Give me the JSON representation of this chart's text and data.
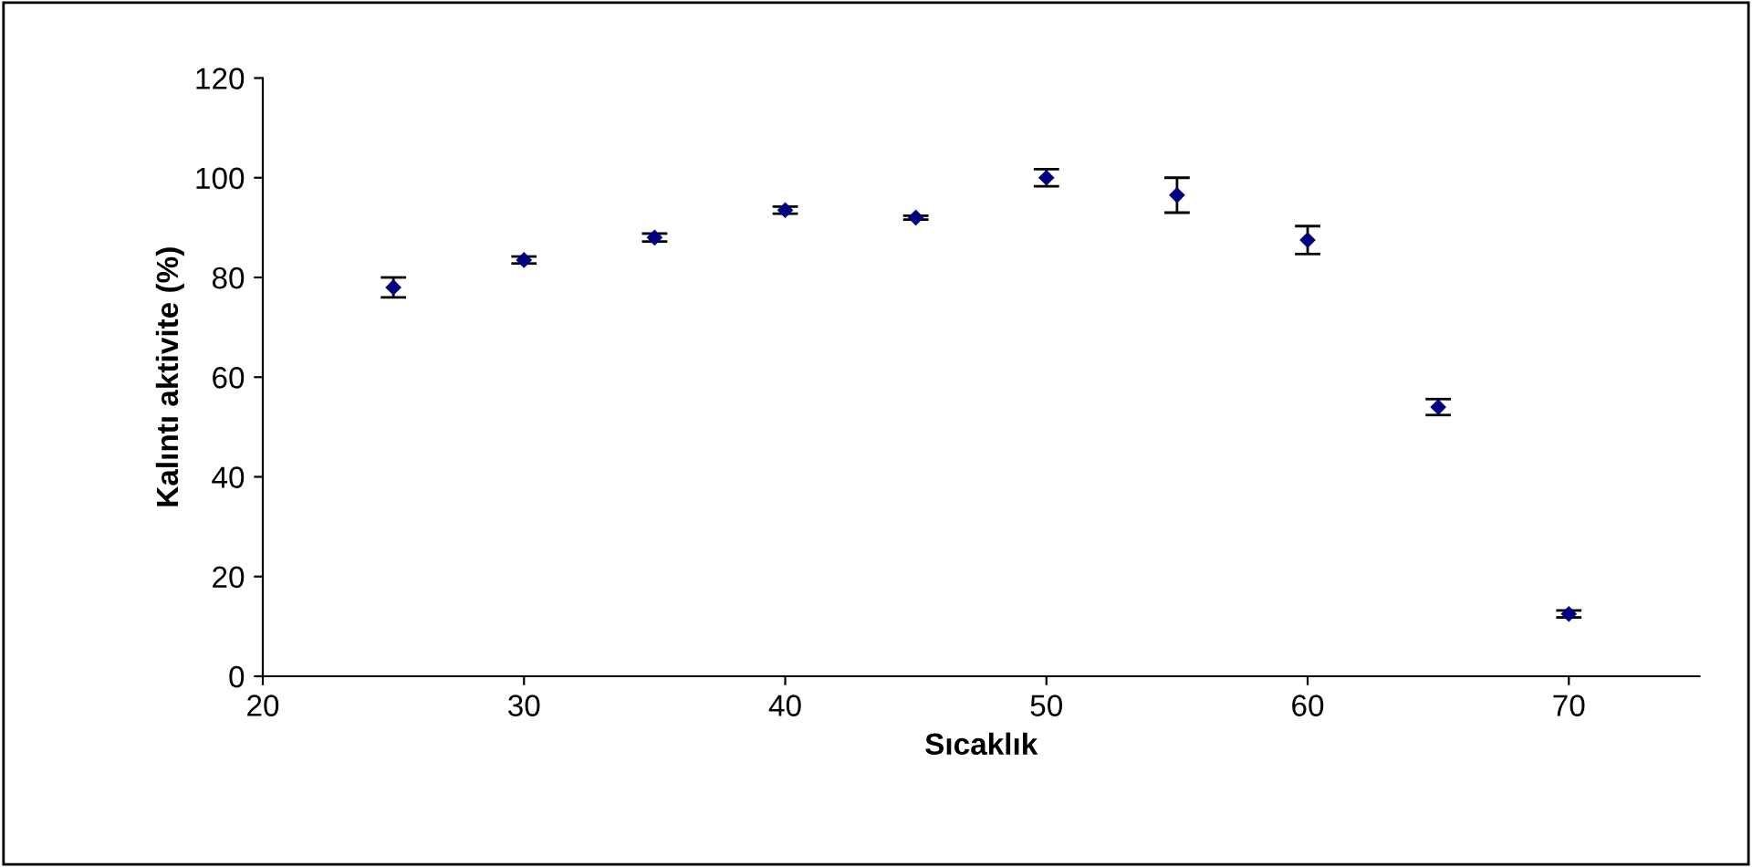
{
  "chart_data": {
    "type": "scatter",
    "xlabel": "Sıcaklık",
    "ylabel": "Kalıntı aktivite (%)",
    "x": [
      25,
      30,
      35,
      40,
      45,
      50,
      55,
      60,
      65,
      70
    ],
    "values": [
      78,
      83.5,
      88,
      93.5,
      92,
      100,
      96.5,
      87.5,
      54,
      12.5
    ],
    "errors": [
      2,
      0.7,
      0.8,
      0.7,
      0.4,
      1.7,
      3.5,
      2.8,
      1.6,
      0.7
    ],
    "color": "#000080",
    "marker": "diamond",
    "grid": false,
    "legend": false,
    "xlim": [
      20,
      75
    ],
    "xticks": [
      20,
      30,
      40,
      50,
      60,
      70
    ],
    "ylim": [
      0,
      120
    ],
    "yticks": [
      0,
      20,
      40,
      60,
      80,
      100,
      120
    ]
  }
}
